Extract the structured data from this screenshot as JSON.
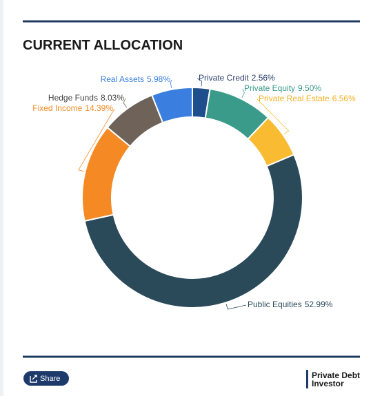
{
  "chart_data": {
    "type": "donut",
    "title": "CURRENT ALLOCATION",
    "categories": [
      "Private Credit",
      "Private Equity",
      "Private Real Estate",
      "Public Equities",
      "Fixed Income",
      "Hedge Funds",
      "Real Assets"
    ],
    "values": [
      2.56,
      9.5,
      6.56,
      52.99,
      14.39,
      8.03,
      5.98
    ],
    "value_labels": [
      "2.56%",
      "9.50%",
      "6.56%",
      "52.99%",
      "14.39%",
      "8.03%",
      "5.98%"
    ],
    "colors": [
      "#1f4e8c",
      "#3a9b8a",
      "#f8bb32",
      "#2a4a5a",
      "#f58a25",
      "#6e6259",
      "#3a7fe0"
    ]
  },
  "footer": {
    "share": "Share",
    "logo_lines": [
      "Private Debt",
      "Investor"
    ]
  }
}
